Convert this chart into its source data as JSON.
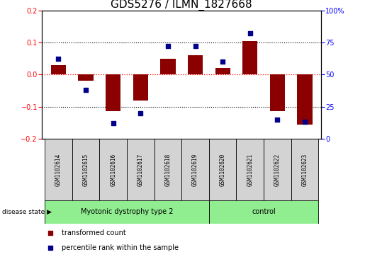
{
  "title": "GDS5276 / ILMN_1827668",
  "samples": [
    "GSM1102614",
    "GSM1102615",
    "GSM1102616",
    "GSM1102617",
    "GSM1102618",
    "GSM1102619",
    "GSM1102620",
    "GSM1102621",
    "GSM1102622",
    "GSM1102623"
  ],
  "transformed_count": [
    0.03,
    -0.02,
    -0.115,
    -0.08,
    0.05,
    0.06,
    0.02,
    0.105,
    -0.115,
    -0.155
  ],
  "percentile_rank": [
    62,
    38,
    12,
    20,
    72,
    72,
    60,
    82,
    15,
    13
  ],
  "groups": [
    {
      "label": "Myotonic dystrophy type 2",
      "start": 0,
      "end": 6,
      "color": "#90EE90"
    },
    {
      "label": "control",
      "start": 6,
      "end": 10,
      "color": "#90EE90"
    }
  ],
  "ylim_left": [
    -0.2,
    0.2
  ],
  "ylim_right": [
    0,
    100
  ],
  "yticks_left": [
    -0.2,
    -0.1,
    0.0,
    0.1,
    0.2
  ],
  "yticks_right": [
    0,
    25,
    50,
    75,
    100
  ],
  "bar_color": "#8B0000",
  "dot_color": "#00008B",
  "disease_label": "disease state",
  "legend_bar": "transformed count",
  "legend_dot": "percentile rank within the sample",
  "background_color": "#FFFFFF",
  "plot_bg_color": "#FFFFFF",
  "zero_line_color": "#FF0000",
  "header_bg": "#D3D3D3",
  "title_fontsize": 11,
  "tick_fontsize": 7,
  "label_fontsize": 7.5
}
